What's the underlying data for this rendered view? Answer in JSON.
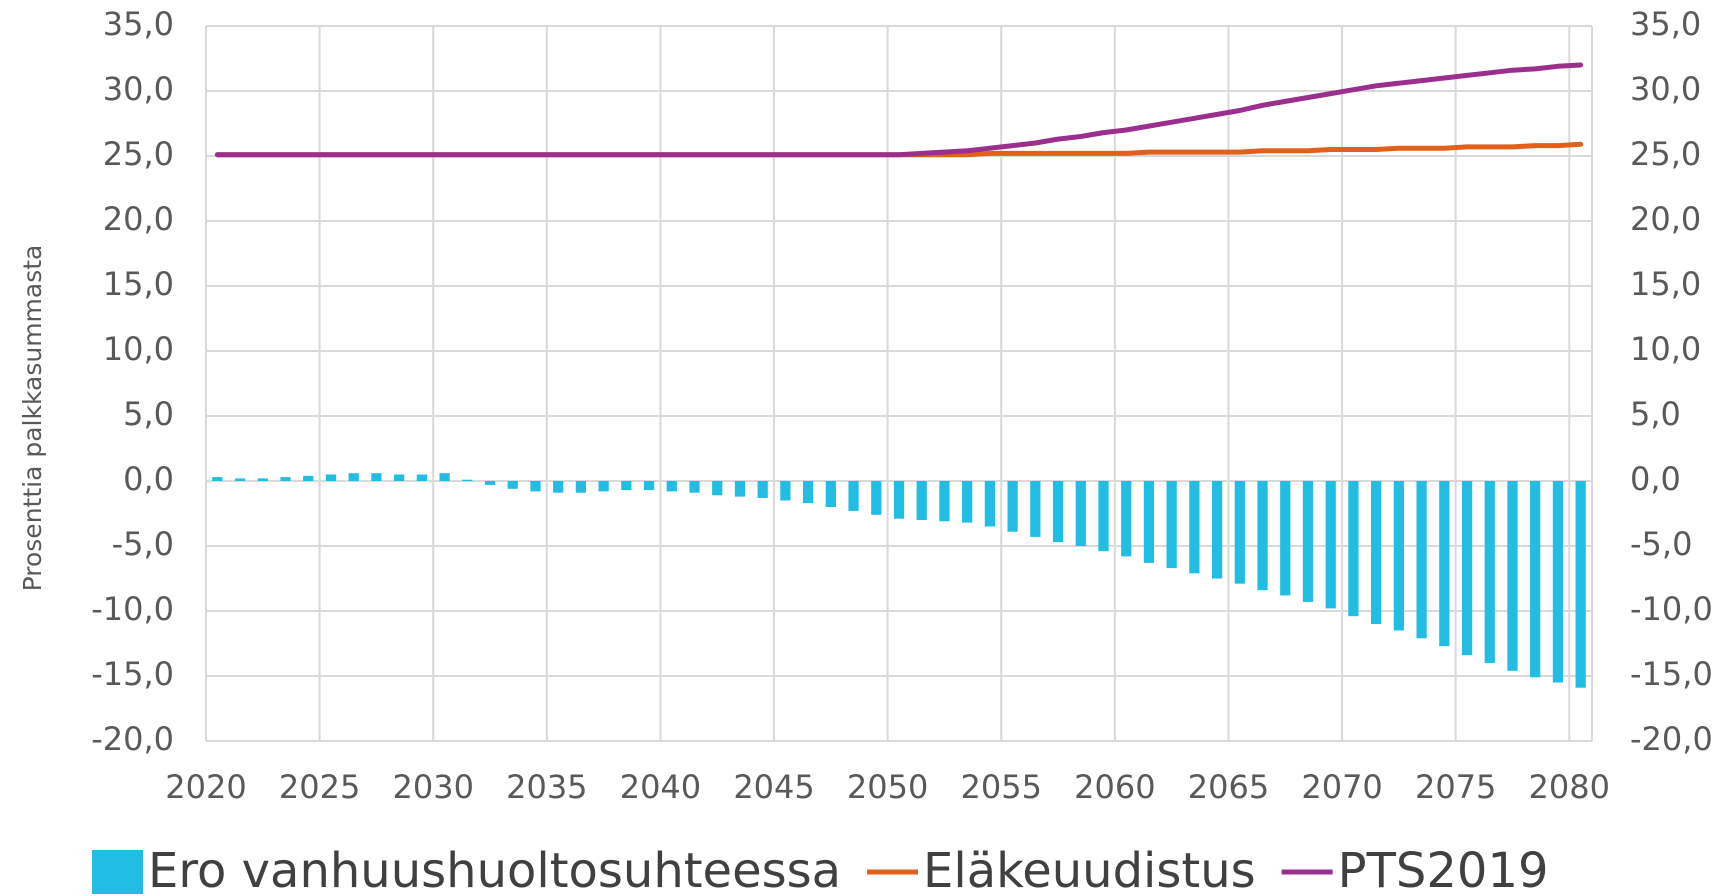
{
  "chart_data": {
    "type": "bar-line",
    "y_label": "Prosenttia palkkasummasta",
    "x": [
      2020,
      2021,
      2022,
      2023,
      2024,
      2025,
      2026,
      2027,
      2028,
      2029,
      2030,
      2031,
      2032,
      2033,
      2034,
      2035,
      2036,
      2037,
      2038,
      2039,
      2040,
      2041,
      2042,
      2043,
      2044,
      2045,
      2046,
      2047,
      2048,
      2049,
      2050,
      2051,
      2052,
      2053,
      2054,
      2055,
      2056,
      2057,
      2058,
      2059,
      2060,
      2061,
      2062,
      2063,
      2064,
      2065,
      2066,
      2067,
      2068,
      2069,
      2070,
      2071,
      2072,
      2073,
      2074,
      2075,
      2076,
      2077,
      2078,
      2079,
      2080
    ],
    "xlim": [
      2020,
      2081
    ],
    "xticks": [
      2020,
      2025,
      2030,
      2035,
      2040,
      2045,
      2050,
      2055,
      2060,
      2065,
      2070,
      2075,
      2080
    ],
    "ylim": [
      -20,
      35
    ],
    "yticks": [
      {
        "value": -20,
        "label": "-20,0"
      },
      {
        "value": -15,
        "label": "-15,0"
      },
      {
        "value": -10,
        "label": "-10,0"
      },
      {
        "value": -5,
        "label": "-5,0"
      },
      {
        "value": 0,
        "label": "0,0"
      },
      {
        "value": 5,
        "label": "5,0"
      },
      {
        "value": 10,
        "label": "10,0"
      },
      {
        "value": 15,
        "label": "15,0"
      },
      {
        "value": 20,
        "label": "20,0"
      },
      {
        "value": 25,
        "label": "25,0"
      },
      {
        "value": 30,
        "label": "30,0"
      },
      {
        "value": 35,
        "label": "35,0"
      }
    ],
    "y2lim": [
      -20,
      35
    ],
    "y2ticks": [
      {
        "value": -20,
        "label": "-20,0"
      },
      {
        "value": -15,
        "label": "-15,0"
      },
      {
        "value": -10,
        "label": "-10,0"
      },
      {
        "value": -5,
        "label": "-5,0"
      },
      {
        "value": 0,
        "label": "0,0"
      },
      {
        "value": 5,
        "label": "5,0"
      },
      {
        "value": 10,
        "label": "10,0"
      },
      {
        "value": 15,
        "label": "15,0"
      },
      {
        "value": 20,
        "label": "20,0"
      },
      {
        "value": 25,
        "label": "25,0"
      },
      {
        "value": 30,
        "label": "30,0"
      },
      {
        "value": 35,
        "label": "35,0"
      }
    ],
    "grid": true,
    "legend": "bottom",
    "series": [
      {
        "name": "Ero vanhuushuoltosuhteessa",
        "kind": "bar",
        "color": "#22bde2",
        "values": [
          0.3,
          0.2,
          0.2,
          0.3,
          0.4,
          0.5,
          0.6,
          0.6,
          0.5,
          0.5,
          0.6,
          0.1,
          -0.3,
          -0.6,
          -0.8,
          -0.9,
          -0.9,
          -0.8,
          -0.7,
          -0.7,
          -0.8,
          -0.9,
          -1.1,
          -1.2,
          -1.3,
          -1.5,
          -1.7,
          -2.0,
          -2.3,
          -2.6,
          -2.9,
          -3.0,
          -3.1,
          -3.2,
          -3.5,
          -3.9,
          -4.3,
          -4.7,
          -5.0,
          -5.4,
          -5.8,
          -6.3,
          -6.7,
          -7.1,
          -7.5,
          -7.9,
          -8.4,
          -8.8,
          -9.3,
          -9.8,
          -10.4,
          -11.0,
          -11.5,
          -12.1,
          -12.7,
          -13.4,
          -14.0,
          -14.6,
          -15.1,
          -15.5,
          -15.9
        ]
      },
      {
        "name": "Eläkeuudistus",
        "kind": "line",
        "axis": "y2",
        "color": "#e35f1c",
        "values": [
          25.1,
          25.1,
          25.1,
          25.1,
          25.1,
          25.1,
          25.1,
          25.1,
          25.1,
          25.1,
          25.1,
          25.1,
          25.1,
          25.1,
          25.1,
          25.1,
          25.1,
          25.1,
          25.1,
          25.1,
          25.1,
          25.1,
          25.1,
          25.1,
          25.1,
          25.1,
          25.1,
          25.1,
          25.1,
          25.1,
          25.1,
          25.1,
          25.1,
          25.1,
          25.2,
          25.2,
          25.2,
          25.2,
          25.2,
          25.2,
          25.2,
          25.3,
          25.3,
          25.3,
          25.3,
          25.3,
          25.4,
          25.4,
          25.4,
          25.5,
          25.5,
          25.5,
          25.6,
          25.6,
          25.6,
          25.7,
          25.7,
          25.7,
          25.8,
          25.8,
          25.9
        ]
      },
      {
        "name": "PTS2019",
        "kind": "line",
        "axis": "y2",
        "color": "#9b2f8d",
        "values": [
          25.1,
          25.1,
          25.1,
          25.1,
          25.1,
          25.1,
          25.1,
          25.1,
          25.1,
          25.1,
          25.1,
          25.1,
          25.1,
          25.1,
          25.1,
          25.1,
          25.1,
          25.1,
          25.1,
          25.1,
          25.1,
          25.1,
          25.1,
          25.1,
          25.1,
          25.1,
          25.1,
          25.1,
          25.1,
          25.1,
          25.1,
          25.2,
          25.3,
          25.4,
          25.6,
          25.8,
          26.0,
          26.3,
          26.5,
          26.8,
          27.0,
          27.3,
          27.6,
          27.9,
          28.2,
          28.5,
          28.9,
          29.2,
          29.5,
          29.8,
          30.1,
          30.4,
          30.6,
          30.8,
          31.0,
          31.2,
          31.4,
          31.6,
          31.7,
          31.9,
          32.0
        ]
      }
    ]
  }
}
